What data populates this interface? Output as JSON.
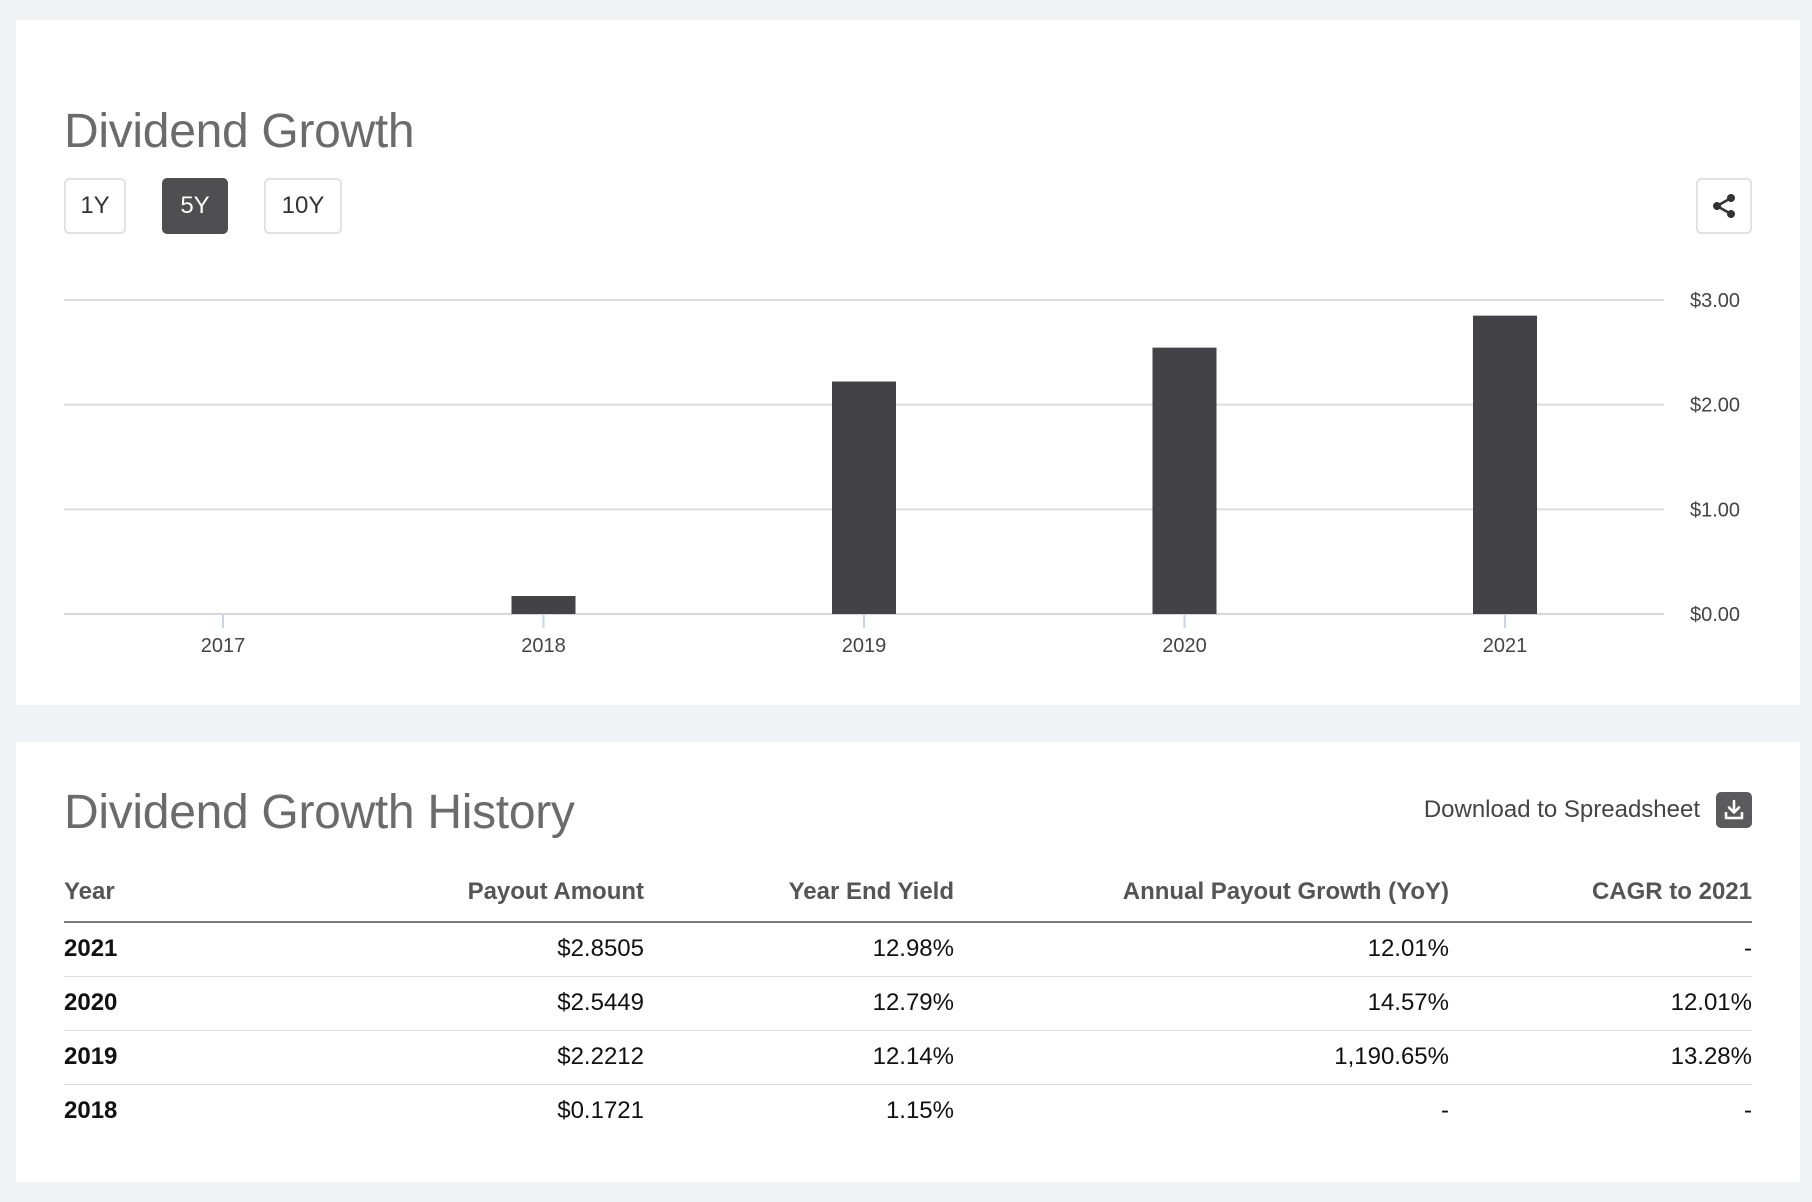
{
  "chart_card": {
    "title": "Dividend Growth",
    "ranges": [
      {
        "label": "1Y",
        "active": false
      },
      {
        "label": "5Y",
        "active": true
      },
      {
        "label": "10Y",
        "active": false
      }
    ],
    "share_icon": "share-icon"
  },
  "chart_data": {
    "type": "bar",
    "title": "Dividend Growth",
    "categories": [
      "2017",
      "2018",
      "2019",
      "2020",
      "2021"
    ],
    "values": [
      0,
      0.1721,
      2.2212,
      2.5449,
      2.8505
    ],
    "ylim": [
      0,
      3
    ],
    "yticks": [
      "$0.00",
      "$1.00",
      "$2.00",
      "$3.00"
    ],
    "ytick_values": [
      0,
      1,
      2,
      3
    ],
    "xlabel": "",
    "ylabel": "",
    "y_axis_side": "right",
    "bar_color": "#434347",
    "grid": true
  },
  "table_card": {
    "title": "Dividend Growth History",
    "download_label": "Download to Spreadsheet",
    "download_icon": "download-icon",
    "columns": [
      "Year",
      "Payout Amount",
      "Year End Yield",
      "Annual Payout Growth (YoY)",
      "CAGR to 2021"
    ],
    "rows": [
      [
        "2021",
        "$2.8505",
        "12.98%",
        "12.01%",
        "-"
      ],
      [
        "2020",
        "$2.5449",
        "12.79%",
        "14.57%",
        "12.01%"
      ],
      [
        "2019",
        "$2.2212",
        "12.14%",
        "1,190.65%",
        "13.28%"
      ],
      [
        "2018",
        "$0.1721",
        "1.15%",
        "-",
        "-"
      ]
    ]
  }
}
